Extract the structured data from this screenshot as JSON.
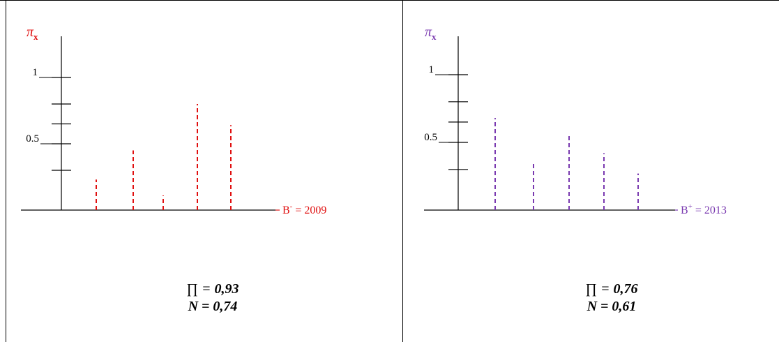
{
  "chart_data": [
    {
      "type": "bar",
      "style": "vertical dashed lines",
      "ylabel": "π",
      "ylabel_sub": "x",
      "xlabel_prefix": "B",
      "xlabel_sup": "-",
      "xlabel_value": "= 2009",
      "y_tick_labels": [
        "1",
        "0.5"
      ],
      "y_ticks": [
        0.3,
        0.5,
        0.65,
        0.8,
        1.0
      ],
      "ylim": [
        0,
        1.0
      ],
      "values": [
        0.23,
        0.45,
        0.11,
        0.8,
        0.64
      ],
      "color": "#e01010",
      "stats": {
        "pi_label": "∏",
        "pi_value": "0,93",
        "n_label": "N",
        "n_value": "0,74"
      }
    },
    {
      "type": "bar",
      "style": "vertical dashed lines",
      "ylabel": "π",
      "ylabel_sub": "x",
      "xlabel_prefix": "B",
      "xlabel_sup": "+",
      "xlabel_value": "= 2013",
      "y_tick_labels": [
        "1",
        "0.5"
      ],
      "y_ticks": [
        0.3,
        0.5,
        0.65,
        0.8,
        1.0
      ],
      "ylim": [
        0,
        1.0
      ],
      "values": [
        0.68,
        0.34,
        0.55,
        0.42,
        0.27
      ],
      "color": "#7a3ab0",
      "stats": {
        "pi_label": "∏",
        "pi_value": "0,76",
        "n_label": "N",
        "n_value": "0,61"
      }
    }
  ]
}
